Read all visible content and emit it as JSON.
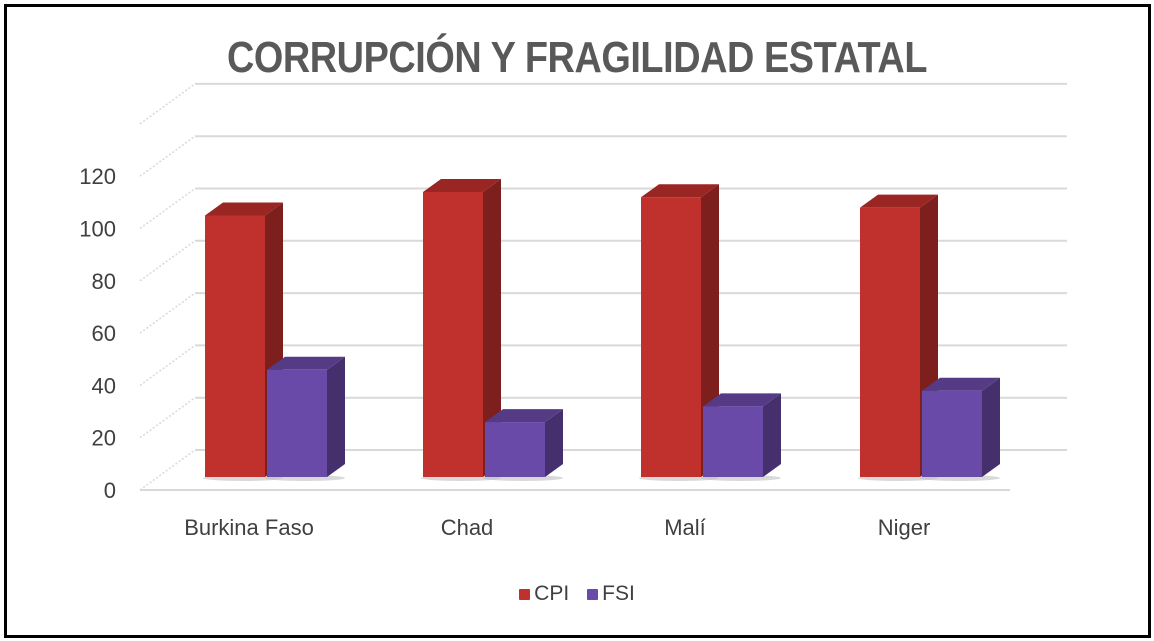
{
  "title": "CORRUPCIÓN Y FRAGILIDAD ESTATAL",
  "legend": [
    {
      "label": "CPI",
      "color": "#c0302c",
      "icon": "red-square-icon"
    },
    {
      "label": "FSI",
      "color": "#6a4aa8",
      "icon": "purple-square-icon"
    }
  ],
  "chart_data": {
    "type": "bar",
    "style": "3d-clustered-column",
    "title": "CORRUPCIÓN Y FRAGILIDAD ESTATAL",
    "xlabel": "",
    "ylabel": "",
    "categories": [
      "Burkina Faso",
      "Chad",
      "Malí",
      "Niger"
    ],
    "series": [
      {
        "name": "CPI",
        "color": "#c0302c",
        "values": [
          100,
          109,
          107,
          103
        ]
      },
      {
        "name": "FSI",
        "color": "#6a4aa8",
        "values": [
          41,
          21,
          27,
          33
        ]
      }
    ],
    "yticks": [
      0,
      20,
      40,
      60,
      80,
      100,
      120
    ],
    "ylim": [
      0,
      140
    ],
    "grid": true,
    "legend_position": "bottom"
  }
}
